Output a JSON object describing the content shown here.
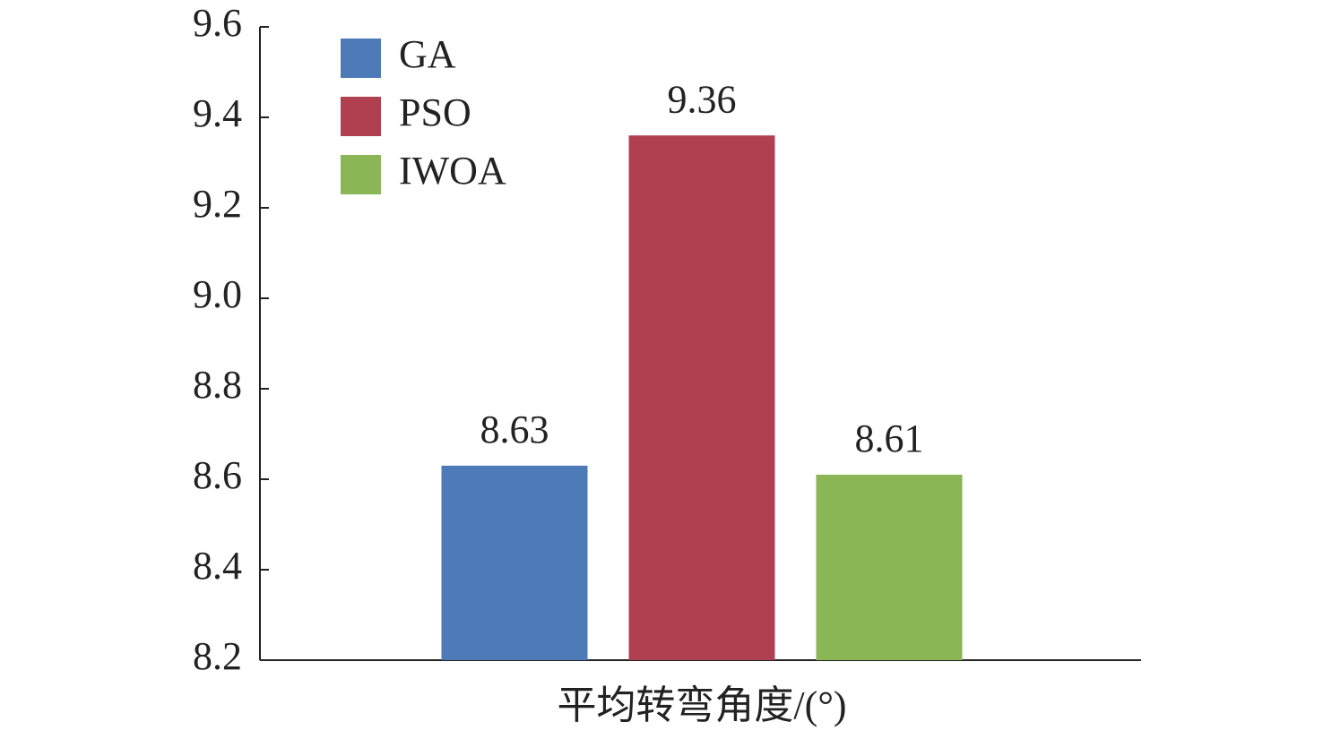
{
  "chart_data": {
    "type": "bar",
    "categories": [
      "平均转弯角度/(°)"
    ],
    "series": [
      {
        "name": "GA",
        "color": "#4f7ab8",
        "values": [
          8.63
        ]
      },
      {
        "name": "PSO",
        "color": "#b0404f",
        "values": [
          9.36
        ]
      },
      {
        "name": "IWOA",
        "color": "#8ab656",
        "values": [
          8.61
        ]
      }
    ],
    "ylim": [
      8.2,
      9.6
    ],
    "yticks": [
      8.2,
      8.4,
      8.6,
      8.8,
      {
        "value": 9,
        "label": "9.0"
      },
      9.2,
      9.4,
      9.6
    ],
    "grid": false,
    "legend": "upper left"
  }
}
